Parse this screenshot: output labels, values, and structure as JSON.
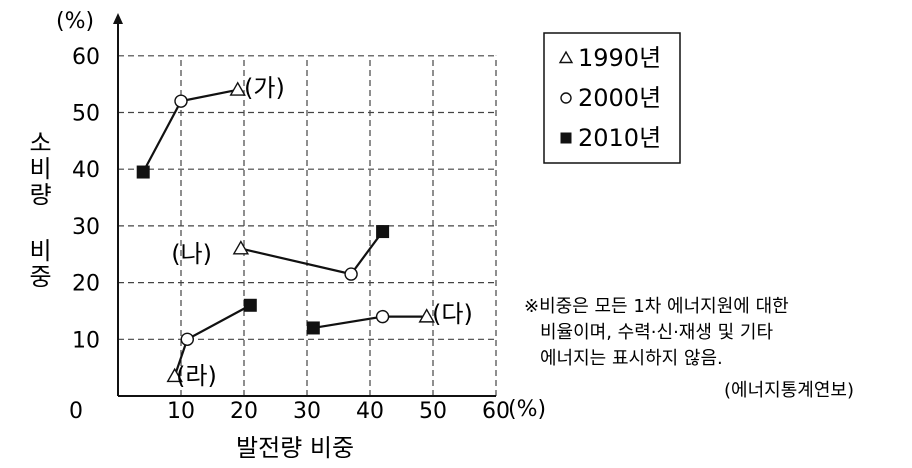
{
  "chart_data": {
    "type": "scatter",
    "ylabel_unit": "(%)",
    "xlabel_unit": "(%)",
    "ylabel": "소비량 비중",
    "xlabel": "발전량 비중",
    "xlim": [
      0,
      60
    ],
    "ylim": [
      0,
      60
    ],
    "x_ticks": [
      "0",
      "10",
      "20",
      "30",
      "40",
      "50",
      "60"
    ],
    "y_ticks": [
      "10",
      "20",
      "30",
      "40",
      "50",
      "60"
    ],
    "grid": true,
    "legend_position": "top-right",
    "legend": [
      {
        "marker": "triangle",
        "label": "1990년"
      },
      {
        "marker": "circle",
        "label": "2000년"
      },
      {
        "marker": "square",
        "label": "2010년"
      }
    ],
    "series": [
      {
        "name": "(가)",
        "points": [
          {
            "year": "1990년",
            "x": 19,
            "y": 54
          },
          {
            "year": "2000년",
            "x": 10,
            "y": 52
          },
          {
            "year": "2010년",
            "x": 4,
            "y": 39.5
          }
        ]
      },
      {
        "name": "(나)",
        "points": [
          {
            "year": "1990년",
            "x": 19.5,
            "y": 26
          },
          {
            "year": "2000년",
            "x": 37,
            "y": 21.5
          },
          {
            "year": "2010년",
            "x": 42,
            "y": 29
          }
        ]
      },
      {
        "name": "(다)",
        "points": [
          {
            "year": "1990년",
            "x": 49,
            "y": 14
          },
          {
            "year": "2000년",
            "x": 42,
            "y": 14
          },
          {
            "year": "2010년",
            "x": 31,
            "y": 12
          }
        ]
      },
      {
        "name": "(라)",
        "points": [
          {
            "year": "1990년",
            "x": 9,
            "y": 3.5
          },
          {
            "year": "2000년",
            "x": 11,
            "y": 10
          },
          {
            "year": "2010년",
            "x": 21,
            "y": 16
          }
        ]
      }
    ],
    "footnote": [
      "※비중은 모든 1차 에너지원에 대한",
      "비율이며, 수력·신·재생 및 기타",
      "에너지는 표시하지 않음."
    ],
    "source": "(에너지통계연보)"
  }
}
